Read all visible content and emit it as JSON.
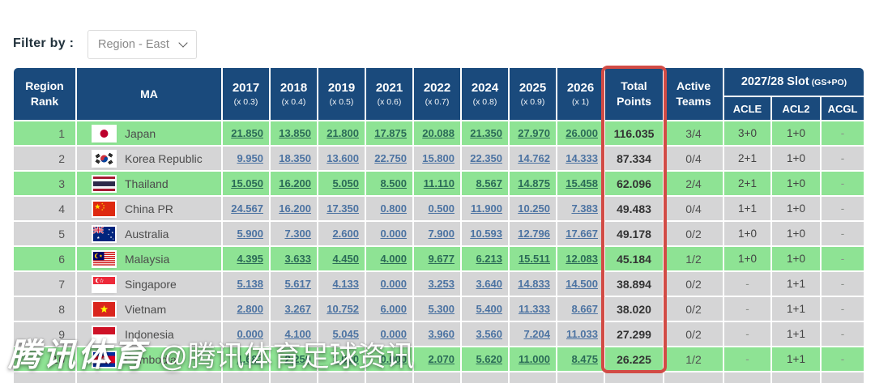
{
  "filter": {
    "label": "Filter by :",
    "value": "Region - East"
  },
  "watermark": {
    "brand": "腾讯体育",
    "handle": "@腾讯体育足球资讯"
  },
  "colors": {
    "header_navy": "#1a4a7c",
    "row_green": "#8ee394",
    "row_gray": "#d5d5d6",
    "accent_red": "#d24b45",
    "link_on_green": "#2b6b57",
    "link_on_gray": "#4c73a2"
  },
  "table": {
    "header": {
      "region_rank": "Region Rank",
      "ma": "MA",
      "years": [
        {
          "label": "2017",
          "mult": "(x 0.3)"
        },
        {
          "label": "2018",
          "mult": "(x 0.4)"
        },
        {
          "label": "2019",
          "mult": "(x 0.5)"
        },
        {
          "label": "2021",
          "mult": "(x 0.6)"
        },
        {
          "label": "2022",
          "mult": "(x 0.7)"
        },
        {
          "label": "2024",
          "mult": "(x 0.8)"
        },
        {
          "label": "2025",
          "mult": "(x 0.9)"
        },
        {
          "label": "2026",
          "mult": "(x 1)"
        }
      ],
      "total": "Total Points",
      "active": "Active Teams",
      "slot_title": "2027/28 Slot",
      "slot_suffix": "(GS+PO)",
      "slot_cols": [
        "ACLE",
        "ACL2",
        "ACGL"
      ]
    },
    "rows": [
      {
        "rank": "1",
        "flag": "japan-flag",
        "country": "Japan",
        "highlight": true,
        "values": [
          "21.850",
          "13.850",
          "21.800",
          "17.875",
          "20.088",
          "21.350",
          "27.970",
          "26.000"
        ],
        "total": "116.035",
        "active": "3/4",
        "slots": [
          "3+0",
          "1+0",
          "-"
        ]
      },
      {
        "rank": "2",
        "flag": "korea-flag",
        "country": "Korea Republic",
        "highlight": false,
        "values": [
          "9.950",
          "18.350",
          "13.600",
          "22.750",
          "15.800",
          "22.350",
          "14.762",
          "14.333"
        ],
        "total": "87.334",
        "active": "0/4",
        "slots": [
          "2+1",
          "1+0",
          "-"
        ]
      },
      {
        "rank": "3",
        "flag": "thailand-flag",
        "country": "Thailand",
        "highlight": true,
        "values": [
          "15.050",
          "16.200",
          "5.050",
          "8.500",
          "11.110",
          "8.567",
          "14.875",
          "15.458"
        ],
        "total": "62.096",
        "active": "2/4",
        "slots": [
          "2+1",
          "1+0",
          "-"
        ]
      },
      {
        "rank": "4",
        "flag": "china-flag",
        "country": "China PR",
        "highlight": false,
        "values": [
          "24.567",
          "16.200",
          "17.350",
          "0.800",
          "0.500",
          "11.900",
          "10.250",
          "7.383"
        ],
        "total": "49.483",
        "active": "0/4",
        "slots": [
          "1+1",
          "1+0",
          "-"
        ]
      },
      {
        "rank": "5",
        "flag": "australia-flag",
        "country": "Australia",
        "highlight": false,
        "values": [
          "5.900",
          "7.300",
          "2.600",
          "0.000",
          "7.900",
          "10.593",
          "12.796",
          "17.667"
        ],
        "total": "49.178",
        "active": "0/2",
        "slots": [
          "1+0",
          "1+0",
          "-"
        ]
      },
      {
        "rank": "6",
        "flag": "malaysia-flag",
        "country": "Malaysia",
        "highlight": true,
        "values": [
          "4.395",
          "3.633",
          "4.450",
          "4.000",
          "9.677",
          "6.213",
          "15.511",
          "12.083"
        ],
        "total": "45.184",
        "active": "1/2",
        "slots": [
          "1+0",
          "1+0",
          "-"
        ]
      },
      {
        "rank": "7",
        "flag": "singapore-flag",
        "country": "Singapore",
        "highlight": false,
        "values": [
          "5.138",
          "5.617",
          "4.133",
          "0.000",
          "3.253",
          "3.640",
          "14.833",
          "14.500"
        ],
        "total": "38.894",
        "active": "0/2",
        "slots": [
          "-",
          "1+1",
          "-"
        ]
      },
      {
        "rank": "8",
        "flag": "vietnam-flag",
        "country": "Vietnam",
        "highlight": false,
        "values": [
          "2.800",
          "3.267",
          "10.752",
          "6.000",
          "5.300",
          "5.400",
          "11.333",
          "8.667"
        ],
        "total": "38.020",
        "active": "0/2",
        "slots": [
          "-",
          "1+1",
          "-"
        ]
      },
      {
        "rank": "9",
        "flag": "indonesia-flag",
        "country": "Indonesia",
        "highlight": false,
        "values": [
          "0.000",
          "4.100",
          "5.045",
          "0.000",
          "3.960",
          "3.560",
          "7.204",
          "11.033"
        ],
        "total": "27.299",
        "active": "0/2",
        "slots": [
          "-",
          "1+1",
          "-"
        ]
      },
      {
        "rank": "10",
        "flag": "cambodia-flag",
        "country": "Cambodia",
        "highlight": true,
        "values": [
          "1.683",
          "2.250",
          "1.000",
          "0.000",
          "2.070",
          "5.620",
          "11.000",
          "8.475"
        ],
        "total": "26.225",
        "active": "1/2",
        "slots": [
          "-",
          "1+1",
          "-"
        ]
      }
    ]
  }
}
